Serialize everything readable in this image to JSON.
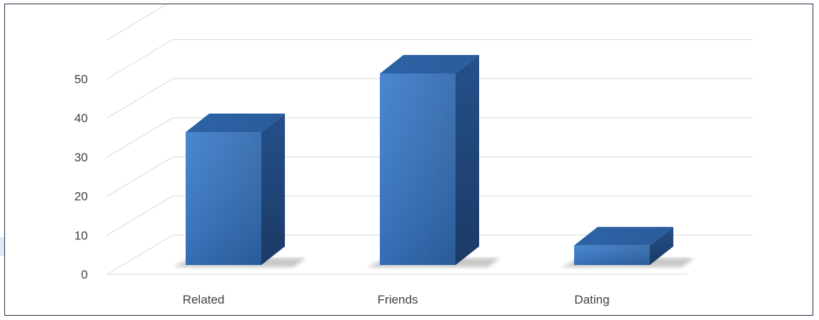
{
  "chart_data": {
    "type": "bar",
    "style": "3d-column",
    "title": "",
    "xlabel": "",
    "ylabel": "",
    "categories": [
      "Related",
      "Friends",
      "Dating"
    ],
    "values": [
      34,
      49,
      5
    ],
    "ylim": [
      0,
      50
    ],
    "yticks": [
      0,
      10,
      20,
      30,
      40,
      50
    ],
    "ytick_labels": [
      "0",
      "10",
      "20",
      "30",
      "40",
      "50"
    ],
    "grid": true,
    "legend": "none",
    "colors": {
      "bar_front": "#3a79c8",
      "bar_side": "#1f4476",
      "bar_top": "#2f66a8",
      "grid": "#d9d9d9",
      "text": "#404040",
      "frame": "#243447"
    }
  }
}
